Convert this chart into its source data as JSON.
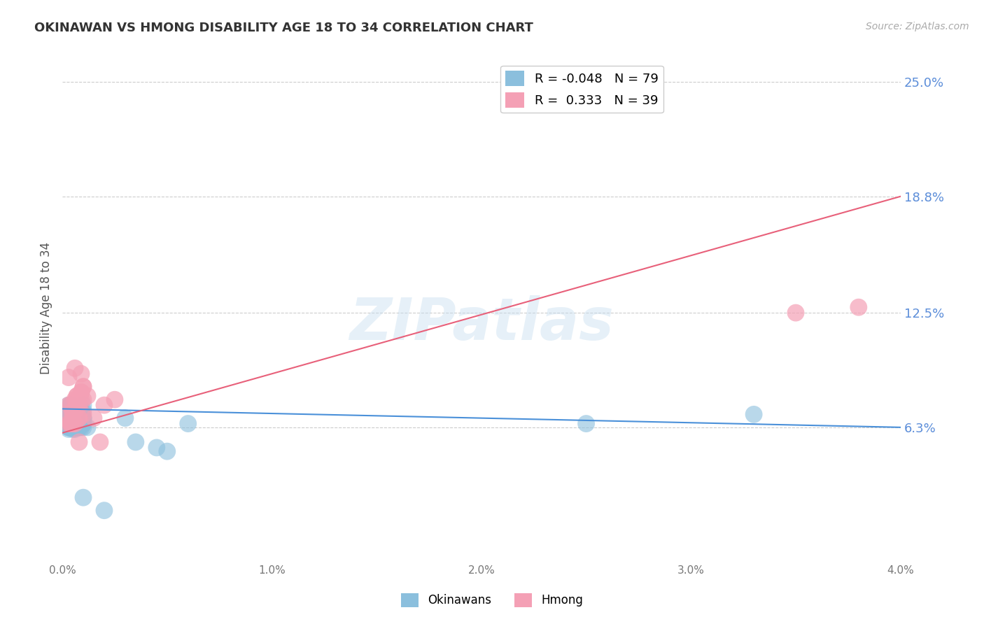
{
  "title": "OKINAWAN VS HMONG DISABILITY AGE 18 TO 34 CORRELATION CHART",
  "source": "Source: ZipAtlas.com",
  "ylabel": "Disability Age 18 to 34",
  "xlim": [
    0.0,
    0.04
  ],
  "ylim": [
    -0.01,
    0.265
  ],
  "xtick_labels": [
    "0.0%",
    "1.0%",
    "2.0%",
    "3.0%",
    "4.0%"
  ],
  "xtick_vals": [
    0.0,
    0.01,
    0.02,
    0.03,
    0.04
  ],
  "ytick_labels": [
    "6.3%",
    "12.5%",
    "18.8%",
    "25.0%"
  ],
  "ytick_vals": [
    0.063,
    0.125,
    0.188,
    0.25
  ],
  "blue_color": "#8bbfdd",
  "pink_color": "#f4a0b5",
  "blue_line_color": "#4a90d9",
  "pink_line_color": "#e8607a",
  "blue_label": "Okinawans",
  "pink_label": "Hmong",
  "blue_R": -0.048,
  "blue_N": 79,
  "pink_R": 0.333,
  "pink_N": 39,
  "watermark": "ZIPatlas",
  "background_color": "#ffffff",
  "grid_color": "#cccccc",
  "right_label_color": "#5b8dd9",
  "blue_line_y0": 0.073,
  "blue_line_y1": 0.063,
  "pink_line_y0": 0.06,
  "pink_line_y1": 0.188,
  "okinawan_x": [
    0.0005,
    0.0008,
    0.001,
    0.0012,
    0.0005,
    0.0003,
    0.0007,
    0.0004,
    0.0006,
    0.001,
    0.0008,
    0.0005,
    0.0003,
    0.0006,
    0.0009,
    0.0004,
    0.0007,
    0.001,
    0.0005,
    0.0008,
    0.0003,
    0.0006,
    0.0004,
    0.0009,
    0.0007,
    0.0005,
    0.0003,
    0.001,
    0.0006,
    0.0008,
    0.0004,
    0.0007,
    0.0005,
    0.0009,
    0.0003,
    0.0006,
    0.001,
    0.0008,
    0.0004,
    0.0007,
    0.0005,
    0.0003,
    0.0009,
    0.0006,
    0.001,
    0.0004,
    0.0008,
    0.0007,
    0.0005,
    0.0003,
    0.0006,
    0.0009,
    0.001,
    0.0004,
    0.0008,
    0.0007,
    0.0005,
    0.0003,
    0.0006,
    0.0009,
    0.0004,
    0.001,
    0.0007,
    0.0005,
    0.0008,
    0.0003,
    0.0006,
    0.0009,
    0.0004,
    0.0007,
    0.0035,
    0.0045,
    0.005,
    0.006,
    0.003,
    0.025,
    0.033,
    0.001,
    0.002
  ],
  "okinawan_y": [
    0.07,
    0.065,
    0.072,
    0.063,
    0.068,
    0.075,
    0.065,
    0.07,
    0.062,
    0.068,
    0.065,
    0.07,
    0.063,
    0.065,
    0.072,
    0.068,
    0.065,
    0.075,
    0.062,
    0.07,
    0.065,
    0.063,
    0.068,
    0.072,
    0.065,
    0.07,
    0.062,
    0.068,
    0.065,
    0.063,
    0.075,
    0.07,
    0.065,
    0.072,
    0.068,
    0.063,
    0.065,
    0.07,
    0.068,
    0.065,
    0.072,
    0.063,
    0.07,
    0.065,
    0.068,
    0.075,
    0.063,
    0.07,
    0.065,
    0.068,
    0.072,
    0.063,
    0.065,
    0.07,
    0.068,
    0.065,
    0.072,
    0.063,
    0.07,
    0.068,
    0.065,
    0.063,
    0.072,
    0.068,
    0.065,
    0.07,
    0.063,
    0.065,
    0.068,
    0.072,
    0.055,
    0.052,
    0.05,
    0.065,
    0.068,
    0.065,
    0.07,
    0.025,
    0.018
  ],
  "hmong_x": [
    0.0004,
    0.0007,
    0.0005,
    0.0003,
    0.0009,
    0.0006,
    0.0008,
    0.001,
    0.0005,
    0.0007,
    0.0004,
    0.0003,
    0.0009,
    0.0006,
    0.0008,
    0.001,
    0.0005,
    0.0007,
    0.0004,
    0.0003,
    0.0009,
    0.0006,
    0.0008,
    0.001,
    0.0005,
    0.0007,
    0.0004,
    0.0003,
    0.0009,
    0.0006,
    0.0008,
    0.001,
    0.0012,
    0.002,
    0.0015,
    0.0025,
    0.0018,
    0.035,
    0.038
  ],
  "hmong_y": [
    0.065,
    0.08,
    0.072,
    0.09,
    0.082,
    0.095,
    0.075,
    0.085,
    0.065,
    0.08,
    0.075,
    0.065,
    0.092,
    0.078,
    0.068,
    0.085,
    0.07,
    0.078,
    0.065,
    0.075,
    0.082,
    0.072,
    0.068,
    0.078,
    0.07,
    0.075,
    0.065,
    0.068,
    0.078,
    0.065,
    0.055,
    0.07,
    0.08,
    0.075,
    0.068,
    0.078,
    0.055,
    0.125,
    0.128
  ]
}
